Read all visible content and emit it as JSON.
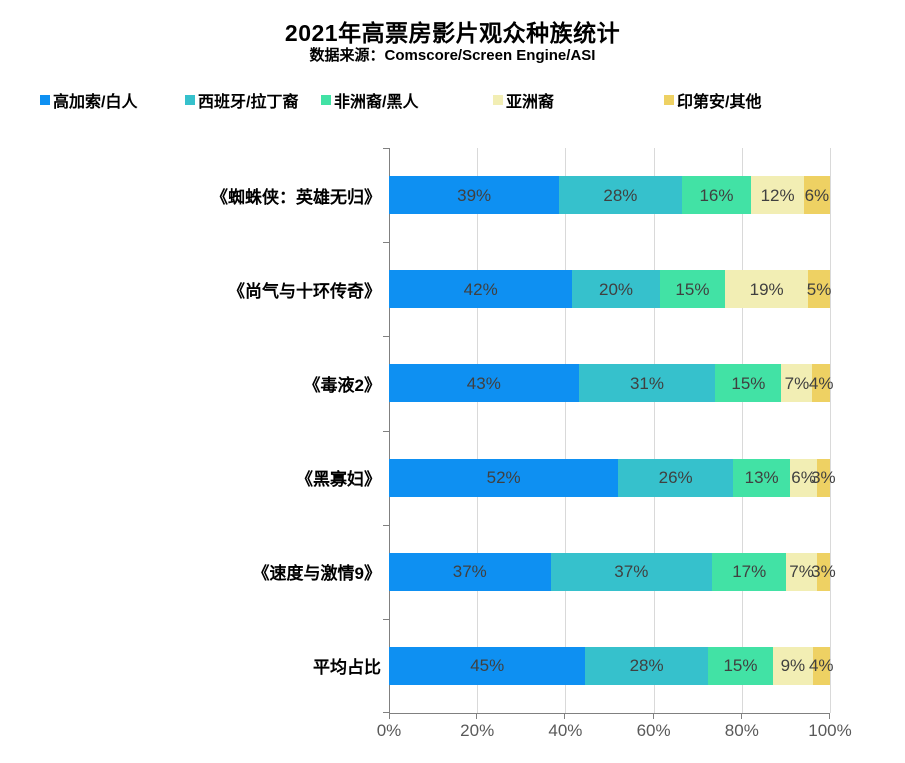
{
  "header": {
    "title": "2021年高票房影片观众种族统计",
    "subtitle": "数据来源：Comscore/Screen Engine/ASI"
  },
  "chart_data": {
    "type": "bar",
    "stacked": true,
    "orientation": "horizontal",
    "title": "2021年高票房影片观众种族统计",
    "subtitle": "数据来源：Comscore/Screen Engine/ASI",
    "categories": [
      "《蜘蛛侠：英雄无归》",
      "《尚气与十环传奇》",
      "《毒液2》",
      "《黑寡妇》",
      "《速度与激情9》",
      "平均占比"
    ],
    "series": [
      {
        "name": "高加索/白人",
        "color": "#0e90f2",
        "values": [
          39,
          42,
          43,
          52,
          37,
          45
        ]
      },
      {
        "name": "西班牙/拉丁裔",
        "color": "#36c1cc",
        "values": [
          28,
          20,
          31,
          26,
          37,
          28
        ]
      },
      {
        "name": "非洲裔/黑人",
        "color": "#42e2a5",
        "values": [
          16,
          15,
          15,
          13,
          17,
          15
        ]
      },
      {
        "name": "亚洲裔",
        "color": "#f2eeb4",
        "values": [
          12,
          19,
          7,
          6,
          7,
          9
        ]
      },
      {
        "name": "印第安/其他",
        "color": "#eed163",
        "values": [
          6,
          5,
          4,
          3,
          3,
          4
        ]
      }
    ],
    "value_suffix": "%",
    "x_ticks": [
      "0%",
      "20%",
      "40%",
      "60%",
      "80%",
      "100%"
    ],
    "xlim": [
      0,
      100
    ],
    "grid": true,
    "legend_position": "top"
  },
  "colors": {
    "axis": "#808080",
    "gridline": "#d9d9d9",
    "tick_label": "#595959",
    "value_label": "#404040",
    "text": "#000000",
    "background": "#ffffff"
  }
}
